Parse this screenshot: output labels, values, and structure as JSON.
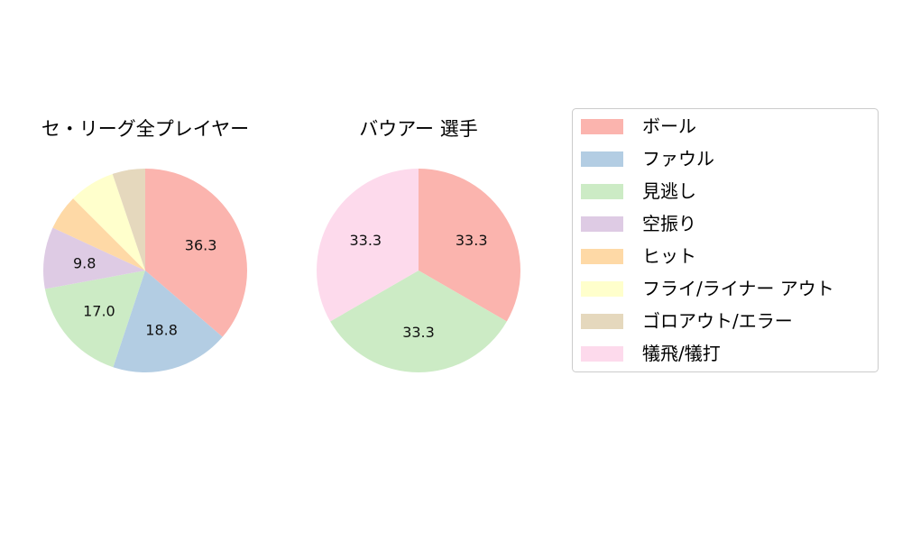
{
  "chart_data": [
    {
      "type": "pie",
      "title": "セ・リーグ全プレイヤー",
      "slices": [
        {
          "label": "ボール",
          "value": 36.3,
          "color": "#fbb4ae",
          "show_label": true
        },
        {
          "label": "ファウル",
          "value": 18.8,
          "color": "#b3cde3",
          "show_label": true
        },
        {
          "label": "見逃し",
          "value": 17.0,
          "color": "#ccebc5",
          "show_label": true
        },
        {
          "label": "空振り",
          "value": 9.8,
          "color": "#decbe4",
          "show_label": true
        },
        {
          "label": "ヒット",
          "value": 5.6,
          "color": "#fed9a6",
          "show_label": false
        },
        {
          "label": "フライ/ライナー アウト",
          "value": 7.3,
          "color": "#ffffcc",
          "show_label": false
        },
        {
          "label": "ゴロアウト/エラー",
          "value": 5.2,
          "color": "#e5d8bd",
          "show_label": false
        }
      ]
    },
    {
      "type": "pie",
      "title": "バウアー  選手",
      "slices": [
        {
          "label": "ボール",
          "value": 33.3,
          "color": "#fbb4ae",
          "show_label": true
        },
        {
          "label": "見逃し",
          "value": 33.3,
          "color": "#ccebc5",
          "show_label": true
        },
        {
          "label": "犠飛/犠打",
          "value": 33.3,
          "color": "#fddaec",
          "show_label": true
        }
      ]
    }
  ],
  "legend": {
    "placement": "right",
    "entries": [
      {
        "label": "ボール",
        "color": "#fbb4ae"
      },
      {
        "label": "ファウル",
        "color": "#b3cde3"
      },
      {
        "label": "見逃し",
        "color": "#ccebc5"
      },
      {
        "label": "空振り",
        "color": "#decbe4"
      },
      {
        "label": "ヒット",
        "color": "#fed9a6"
      },
      {
        "label": "フライ/ライナー アウト",
        "color": "#ffffcc"
      },
      {
        "label": "ゴロアウト/エラー",
        "color": "#e5d8bd"
      },
      {
        "label": "犠飛/犠打",
        "color": "#fddaec"
      }
    ]
  }
}
